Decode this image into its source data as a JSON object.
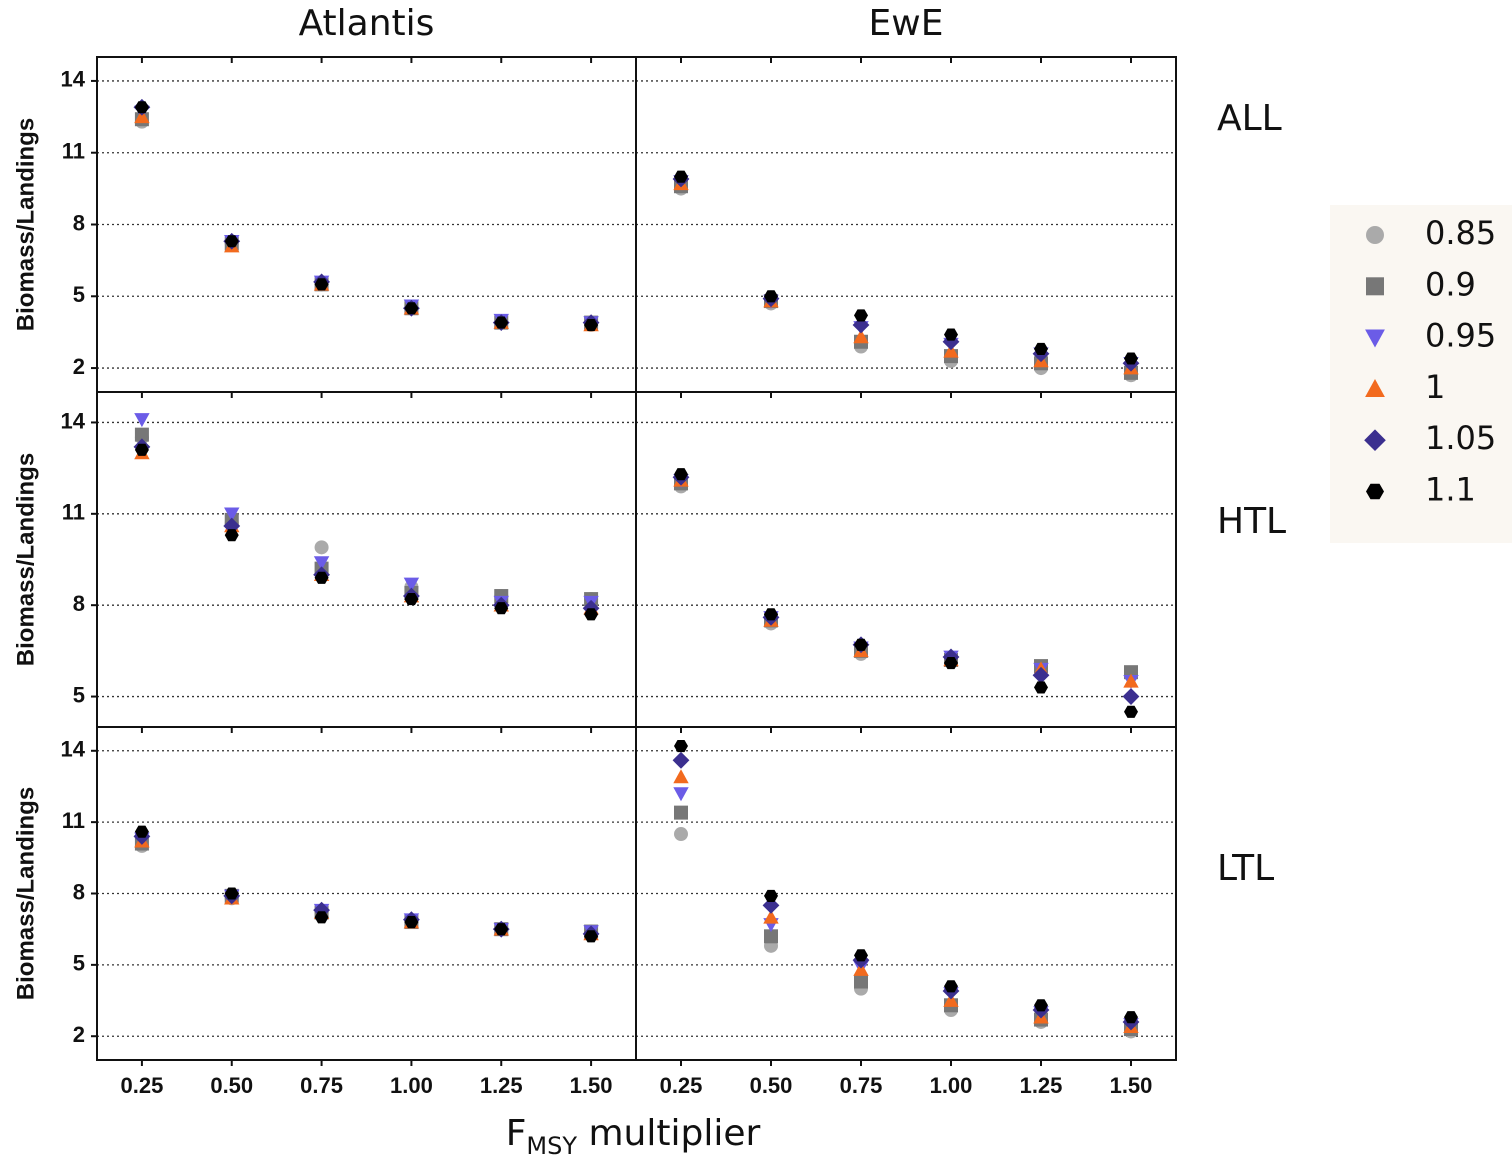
{
  "labels": {
    "columns": [
      "Atlantis",
      "EwE"
    ],
    "rows": [
      "ALL",
      "HTL",
      "LTL"
    ],
    "ylabel": "Biomass/Landings",
    "xlabel_parts": [
      "F",
      "MSY",
      " multiplier"
    ]
  },
  "chart_data": [
    {
      "type": "scatter",
      "x": [
        0.25,
        0.5,
        0.75,
        1.0,
        1.25,
        1.5
      ],
      "xlim": [
        0.125,
        1.625
      ],
      "ylim": [
        1,
        15
      ],
      "xticks": [
        0.25,
        {
          "value": 0.5,
          "label": "0.50"
        },
        0.75,
        {
          "value": 1.0,
          "label": "1.00"
        },
        1.25,
        {
          "value": 1.5,
          "label": "1.50"
        }
      ],
      "yticks": [
        2,
        5,
        8,
        11,
        14
      ],
      "grid": true,
      "series": [
        {
          "name": "0.85",
          "color": "#aaaaaa",
          "marker": "circle",
          "values": [
            12.3,
            7.2,
            5.5,
            4.5,
            3.9,
            3.8
          ]
        },
        {
          "name": "0.9",
          "color": "#777777",
          "marker": "square",
          "values": [
            12.4,
            7.2,
            5.5,
            4.5,
            3.9,
            3.9
          ]
        },
        {
          "name": "0.95",
          "color": "#6b5ce7",
          "marker": "triangle-down",
          "values": [
            12.7,
            7.3,
            5.6,
            4.6,
            4.0,
            3.9
          ]
        },
        {
          "name": "1",
          "color": "#f26a1e",
          "marker": "triangle-up",
          "values": [
            12.5,
            7.1,
            5.5,
            4.5,
            3.9,
            3.8
          ]
        },
        {
          "name": "1.05",
          "color": "#3b2f8f",
          "marker": "diamond",
          "values": [
            12.9,
            7.3,
            5.6,
            4.5,
            3.9,
            3.9
          ]
        },
        {
          "name": "1.1",
          "color": "#000000",
          "marker": "hexagon",
          "values": [
            12.9,
            7.3,
            5.5,
            4.5,
            3.9,
            3.8
          ]
        }
      ]
    },
    {
      "type": "scatter",
      "x": [
        0.25,
        0.5,
        0.75,
        1.0,
        1.25,
        1.5
      ],
      "xlim": [
        0.125,
        1.625
      ],
      "ylim": [
        1,
        15
      ],
      "xticks": [
        0.25,
        {
          "value": 0.5,
          "label": "0.50"
        },
        0.75,
        {
          "value": 1.0,
          "label": "1.00"
        },
        1.25,
        {
          "value": 1.5,
          "label": "1.50"
        }
      ],
      "yticks": [
        2,
        5,
        8,
        11,
        14
      ],
      "grid": true,
      "series": [
        {
          "name": "0.85",
          "color": "#aaaaaa",
          "marker": "circle",
          "values": [
            9.5,
            4.7,
            2.9,
            2.3,
            2.0,
            1.7
          ]
        },
        {
          "name": "0.9",
          "color": "#777777",
          "marker": "square",
          "values": [
            9.6,
            4.8,
            3.1,
            2.5,
            2.2,
            1.8
          ]
        },
        {
          "name": "0.95",
          "color": "#6b5ce7",
          "marker": "triangle-down",
          "values": [
            9.8,
            4.8,
            3.7,
            3.0,
            2.6,
            2.2
          ]
        },
        {
          "name": "1",
          "color": "#f26a1e",
          "marker": "triangle-up",
          "values": [
            9.7,
            4.8,
            3.3,
            2.7,
            2.3,
            2.0
          ]
        },
        {
          "name": "1.05",
          "color": "#3b2f8f",
          "marker": "diamond",
          "values": [
            9.9,
            4.9,
            3.8,
            3.1,
            2.6,
            2.2
          ]
        },
        {
          "name": "1.1",
          "color": "#000000",
          "marker": "hexagon",
          "values": [
            10.0,
            5.0,
            4.2,
            3.4,
            2.8,
            2.4
          ]
        }
      ]
    },
    {
      "type": "scatter",
      "x": [
        0.25,
        0.5,
        0.75,
        1.0,
        1.25,
        1.5
      ],
      "xlim": [
        0.125,
        1.625
      ],
      "ylim": [
        4,
        15
      ],
      "xticks": [
        0.25,
        {
          "value": 0.5,
          "label": "0.50"
        },
        0.75,
        {
          "value": 1.0,
          "label": "1.00"
        },
        1.25,
        {
          "value": 1.5,
          "label": "1.50"
        }
      ],
      "yticks": [
        5,
        8,
        11,
        14
      ],
      "grid": true,
      "series": [
        {
          "name": "0.85",
          "color": "#aaaaaa",
          "marker": "circle",
          "values": [
            13.5,
            10.7,
            9.9,
            8.6,
            8.3,
            8.2
          ]
        },
        {
          "name": "0.9",
          "color": "#777777",
          "marker": "square",
          "values": [
            13.6,
            10.8,
            9.2,
            8.4,
            8.3,
            8.2
          ]
        },
        {
          "name": "0.95",
          "color": "#6b5ce7",
          "marker": "triangle-down",
          "values": [
            14.1,
            11.0,
            9.4,
            8.7,
            8.1,
            8.1
          ]
        },
        {
          "name": "1",
          "color": "#f26a1e",
          "marker": "triangle-up",
          "values": [
            13.0,
            10.6,
            9.0,
            8.3,
            8.0,
            7.9
          ]
        },
        {
          "name": "1.05",
          "color": "#3b2f8f",
          "marker": "diamond",
          "values": [
            13.2,
            10.6,
            9.0,
            8.3,
            8.0,
            7.9
          ]
        },
        {
          "name": "1.1",
          "color": "#000000",
          "marker": "hexagon",
          "values": [
            13.1,
            10.3,
            8.9,
            8.2,
            7.9,
            7.7
          ]
        }
      ]
    },
    {
      "type": "scatter",
      "x": [
        0.25,
        0.5,
        0.75,
        1.0,
        1.25,
        1.5
      ],
      "xlim": [
        0.125,
        1.625
      ],
      "ylim": [
        4,
        15
      ],
      "xticks": [
        0.25,
        {
          "value": 0.5,
          "label": "0.50"
        },
        0.75,
        {
          "value": 1.0,
          "label": "1.00"
        },
        1.25,
        {
          "value": 1.5,
          "label": "1.50"
        }
      ],
      "yticks": [
        5,
        8,
        11,
        14
      ],
      "grid": true,
      "series": [
        {
          "name": "0.85",
          "color": "#aaaaaa",
          "marker": "circle",
          "values": [
            11.9,
            7.4,
            6.4,
            6.2,
            5.9,
            5.7
          ]
        },
        {
          "name": "0.9",
          "color": "#777777",
          "marker": "square",
          "values": [
            12.0,
            7.5,
            6.5,
            6.2,
            6.0,
            5.8
          ]
        },
        {
          "name": "0.95",
          "color": "#6b5ce7",
          "marker": "triangle-down",
          "values": [
            12.1,
            7.6,
            6.6,
            6.3,
            5.9,
            5.5
          ]
        },
        {
          "name": "1",
          "color": "#f26a1e",
          "marker": "triangle-up",
          "values": [
            12.1,
            7.5,
            6.5,
            6.2,
            5.9,
            5.5
          ]
        },
        {
          "name": "1.05",
          "color": "#3b2f8f",
          "marker": "diamond",
          "values": [
            12.2,
            7.6,
            6.7,
            6.3,
            5.7,
            5.0
          ]
        },
        {
          "name": "1.1",
          "color": "#000000",
          "marker": "hexagon",
          "values": [
            12.3,
            7.7,
            6.7,
            6.1,
            5.3,
            4.5
          ]
        }
      ]
    },
    {
      "type": "scatter",
      "x": [
        0.25,
        0.5,
        0.75,
        1.0,
        1.25,
        1.5
      ],
      "xlim": [
        0.125,
        1.625
      ],
      "ylim": [
        1,
        15
      ],
      "xticks": [
        0.25,
        {
          "value": 0.5,
          "label": "0.50"
        },
        0.75,
        {
          "value": 1.0,
          "label": "1.00"
        },
        1.25,
        {
          "value": 1.5,
          "label": "1.50"
        }
      ],
      "yticks": [
        2,
        5,
        8,
        11,
        14
      ],
      "grid": true,
      "series": [
        {
          "name": "0.85",
          "color": "#aaaaaa",
          "marker": "circle",
          "values": [
            10.0,
            7.8,
            7.2,
            6.8,
            6.5,
            6.4
          ]
        },
        {
          "name": "0.9",
          "color": "#777777",
          "marker": "square",
          "values": [
            10.1,
            7.9,
            7.2,
            6.8,
            6.5,
            6.4
          ]
        },
        {
          "name": "0.95",
          "color": "#6b5ce7",
          "marker": "triangle-down",
          "values": [
            10.3,
            7.9,
            7.3,
            6.9,
            6.5,
            6.4
          ]
        },
        {
          "name": "1",
          "color": "#f26a1e",
          "marker": "triangle-up",
          "values": [
            10.2,
            7.8,
            7.2,
            6.8,
            6.5,
            6.3
          ]
        },
        {
          "name": "1.05",
          "color": "#3b2f8f",
          "marker": "diamond",
          "values": [
            10.4,
            7.9,
            7.3,
            6.9,
            6.5,
            6.3
          ]
        },
        {
          "name": "1.1",
          "color": "#000000",
          "marker": "hexagon",
          "values": [
            10.6,
            8.0,
            7.0,
            6.8,
            6.5,
            6.2
          ]
        }
      ]
    },
    {
      "type": "scatter",
      "x": [
        0.25,
        0.5,
        0.75,
        1.0,
        1.25,
        1.5
      ],
      "xlim": [
        0.125,
        1.625
      ],
      "ylim": [
        1,
        15
      ],
      "xticks": [
        0.25,
        {
          "value": 0.5,
          "label": "0.50"
        },
        0.75,
        {
          "value": 1.0,
          "label": "1.00"
        },
        1.25,
        {
          "value": 1.5,
          "label": "1.50"
        }
      ],
      "yticks": [
        2,
        5,
        8,
        11,
        14
      ],
      "grid": true,
      "series": [
        {
          "name": "0.85",
          "color": "#aaaaaa",
          "marker": "circle",
          "values": [
            10.5,
            5.8,
            4.0,
            3.1,
            2.6,
            2.2
          ]
        },
        {
          "name": "0.9",
          "color": "#777777",
          "marker": "square",
          "values": [
            11.4,
            6.2,
            4.3,
            3.3,
            2.7,
            2.3
          ]
        },
        {
          "name": "0.95",
          "color": "#6b5ce7",
          "marker": "triangle-down",
          "values": [
            12.2,
            6.7,
            4.9,
            3.8,
            3.0,
            2.5
          ]
        },
        {
          "name": "1",
          "color": "#f26a1e",
          "marker": "triangle-up",
          "values": [
            12.9,
            7.0,
            4.8,
            3.5,
            2.8,
            2.4
          ]
        },
        {
          "name": "1.05",
          "color": "#3b2f8f",
          "marker": "diamond",
          "values": [
            13.6,
            7.5,
            5.2,
            3.9,
            3.1,
            2.6
          ]
        },
        {
          "name": "1.1",
          "color": "#000000",
          "marker": "hexagon",
          "values": [
            14.2,
            7.9,
            5.4,
            4.1,
            3.3,
            2.8
          ]
        }
      ]
    }
  ]
}
